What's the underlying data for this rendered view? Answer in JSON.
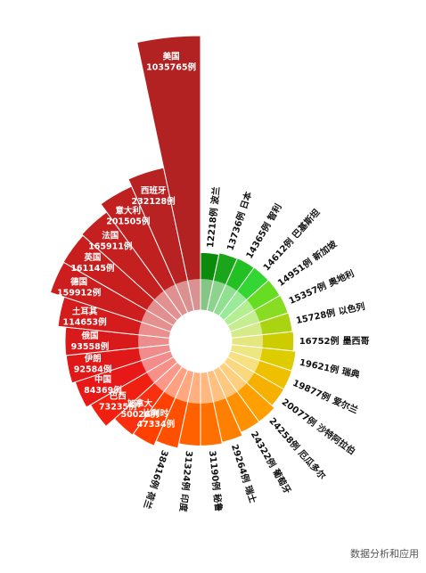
{
  "chart_data": {
    "type": "rose",
    "categories": [
      "波兰",
      "日本",
      "智利",
      "巴基斯坦",
      "新加坡",
      "奥地利",
      "以色列",
      "墨西哥",
      "瑞典",
      "爱尔兰",
      "沙特阿拉伯",
      "厄瓜多尔",
      "葡萄牙",
      "瑞士",
      "秘鲁",
      "印度",
      "荷兰",
      "比利时",
      "加拿大",
      "巴西",
      "中国",
      "伊朗",
      "俄国",
      "土耳其",
      "德国",
      "英国",
      "法国",
      "意大利",
      "西班牙",
      "美国"
    ],
    "values": [
      12218,
      13736,
      14365,
      14612,
      14951,
      15357,
      15728,
      16752,
      19621,
      19877,
      20077,
      24258,
      24322,
      29264,
      31190,
      31324,
      38416,
      47334,
      50026,
      73235,
      84369,
      92584,
      93558,
      114653,
      159912,
      161145,
      165911,
      201505,
      232128,
      1035765
    ],
    "value_labels": [
      "12218例",
      "13736例",
      "14365例",
      "14612例",
      "14951例",
      "15357例",
      "15728例",
      "16752例",
      "19621例",
      "19877例",
      "20077例",
      "24258例",
      "24322例",
      "29264例",
      "31190例",
      "31324例",
      "38416例",
      "47334例",
      "50026例",
      "73235例",
      "84369例",
      "92584例",
      "93558例",
      "114653例",
      "159912例",
      "161145例",
      "165911例",
      "201505例",
      "232128例",
      "1035765例"
    ],
    "colors": [
      "#0b8a0b",
      "#1aa51a",
      "#22c022",
      "#33d633",
      "#66dd22",
      "#88dd22",
      "#aad411",
      "#cccc00",
      "#ddcc00",
      "#eec000",
      "#f5b000",
      "#ff9f00",
      "#ff9000",
      "#ff8000",
      "#ff7000",
      "#ff6000",
      "#ff5000",
      "#ff4000",
      "#f83010",
      "#f02010",
      "#e81818",
      "#e01818",
      "#d81a1a",
      "#d41c1c",
      "#cc1e1e",
      "#c81e1e",
      "#c42020",
      "#c02020",
      "#b82222",
      "#b22222"
    ],
    "watermark": "数据分析和应用"
  }
}
